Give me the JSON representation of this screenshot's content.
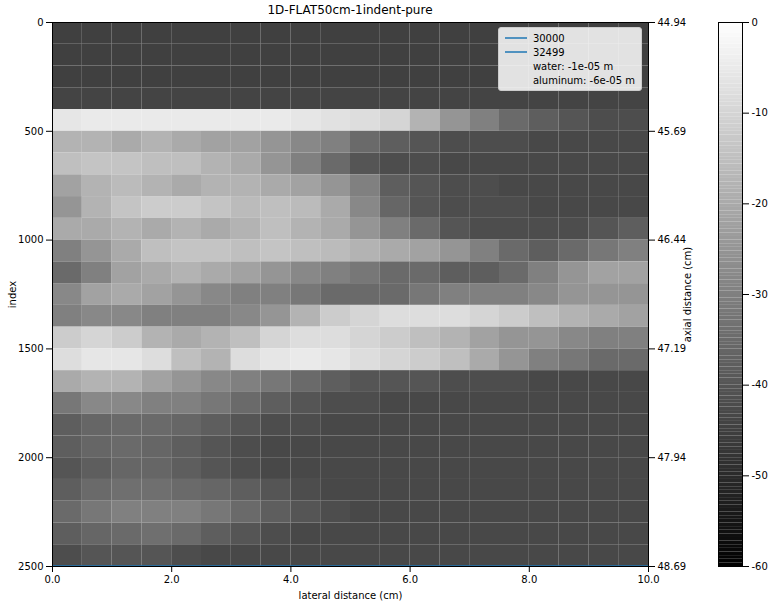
{
  "chart_data": {
    "type": "heatmap",
    "title": "1D-FLAT50cm-1indent-pure",
    "xlabel": "lateral distance (cm)",
    "ylabel": "index",
    "y2label": "axial distance (cm)",
    "xlim": [
      0,
      10
    ],
    "xticks": [
      {
        "value": 0,
        "label": "0.0"
      },
      {
        "value": 2,
        "label": "2.0"
      },
      {
        "value": 4,
        "label": "4.0"
      },
      {
        "value": 6,
        "label": "6.0"
      },
      {
        "value": 8,
        "label": "8.0"
      },
      {
        "value": 10,
        "label": "10.0"
      }
    ],
    "ylim": [
      2500,
      0
    ],
    "yticks": [
      0,
      500,
      1000,
      1500,
      2000,
      2500
    ],
    "y2lim": [
      48.69,
      44.94
    ],
    "y2ticks": [
      44.94,
      45.69,
      46.44,
      47.19,
      47.94,
      48.69
    ],
    "x_edges": [
      0,
      0.5,
      1,
      1.5,
      2,
      2.5,
      3,
      3.5,
      4,
      4.5,
      5,
      5.5,
      6,
      6.5,
      7,
      7.5,
      8,
      8.5,
      9,
      9.5,
      10
    ],
    "y_edges": [
      0,
      100,
      200,
      300,
      400,
      500,
      600,
      700,
      800,
      900,
      1000,
      1100,
      1200,
      1300,
      1400,
      1500,
      1600,
      1700,
      1800,
      1900,
      2000,
      2100,
      2200,
      2300,
      2400,
      2500
    ],
    "values": [
      [
        -45,
        -45,
        -45,
        -45,
        -45,
        -45,
        -45,
        -45,
        -45,
        -45,
        -45,
        -45,
        -45,
        -45,
        -45,
        -45,
        -45,
        -45,
        -45,
        -45
      ],
      [
        -45,
        -45,
        -45,
        -45,
        -45,
        -45,
        -45,
        -45,
        -45,
        -45,
        -45,
        -45,
        -45,
        -45,
        -45,
        -45,
        -45,
        -45,
        -45,
        -45
      ],
      [
        -45,
        -45,
        -45,
        -45,
        -45,
        -45,
        -45,
        -45,
        -45,
        -45,
        -45,
        -45,
        -45,
        -45,
        -45,
        -45,
        -45,
        -45,
        -45,
        -45
      ],
      [
        -44,
        -44,
        -44,
        -44,
        -44,
        -44,
        -44,
        -44,
        -44,
        -44,
        -44,
        -44,
        -44,
        -44,
        -44,
        -44,
        -44,
        -44,
        -44,
        -44
      ],
      [
        -6,
        -5,
        -5,
        -5,
        -5,
        -5,
        -5,
        -5,
        -6,
        -7,
        -8,
        -10,
        -18,
        -25,
        -30,
        -35,
        -38,
        -40,
        -42,
        -42
      ],
      [
        -18,
        -18,
        -20,
        -18,
        -20,
        -22,
        -22,
        -25,
        -28,
        -30,
        -35,
        -38,
        -40,
        -42,
        -42,
        -42,
        -43,
        -43,
        -43,
        -43
      ],
      [
        -15,
        -14,
        -14,
        -15,
        -15,
        -18,
        -20,
        -25,
        -30,
        -35,
        -40,
        -42,
        -42,
        -43,
        -43,
        -43,
        -43,
        -43,
        -43,
        -43
      ],
      [
        -22,
        -18,
        -16,
        -18,
        -20,
        -18,
        -18,
        -20,
        -22,
        -25,
        -30,
        -38,
        -40,
        -42,
        -42,
        -43,
        -43,
        -43,
        -43,
        -43
      ],
      [
        -25,
        -18,
        -14,
        -12,
        -12,
        -14,
        -16,
        -15,
        -16,
        -20,
        -28,
        -36,
        -40,
        -42,
        -42,
        -42,
        -43,
        -43,
        -43,
        -43
      ],
      [
        -20,
        -20,
        -18,
        -20,
        -18,
        -20,
        -18,
        -15,
        -18,
        -20,
        -25,
        -30,
        -35,
        -40,
        -42,
        -42,
        -42,
        -42,
        -40,
        -38
      ],
      [
        -30,
        -25,
        -20,
        -15,
        -14,
        -14,
        -15,
        -14,
        -15,
        -16,
        -18,
        -20,
        -22,
        -25,
        -30,
        -35,
        -38,
        -35,
        -32,
        -30
      ],
      [
        -35,
        -30,
        -22,
        -20,
        -18,
        -20,
        -22,
        -25,
        -28,
        -30,
        -32,
        -35,
        -35,
        -38,
        -38,
        -35,
        -30,
        -25,
        -22,
        -22
      ],
      [
        -28,
        -22,
        -20,
        -22,
        -25,
        -28,
        -30,
        -30,
        -32,
        -35,
        -35,
        -35,
        -32,
        -30,
        -30,
        -30,
        -28,
        -25,
        -25,
        -25
      ],
      [
        -30,
        -28,
        -28,
        -30,
        -30,
        -30,
        -28,
        -25,
        -18,
        -12,
        -10,
        -8,
        -8,
        -8,
        -10,
        -12,
        -15,
        -18,
        -20,
        -22
      ],
      [
        -12,
        -10,
        -12,
        -18,
        -20,
        -18,
        -15,
        -10,
        -8,
        -8,
        -10,
        -12,
        -15,
        -18,
        -22,
        -25,
        -25,
        -28,
        -30,
        -30
      ],
      [
        -8,
        -6,
        -6,
        -8,
        -15,
        -18,
        -8,
        -6,
        -5,
        -6,
        -8,
        -10,
        -12,
        -15,
        -20,
        -25,
        -30,
        -32,
        -35,
        -35
      ],
      [
        -20,
        -18,
        -18,
        -22,
        -25,
        -28,
        -30,
        -32,
        -35,
        -38,
        -40,
        -40,
        -40,
        -42,
        -42,
        -42,
        -43,
        -43,
        -43,
        -43
      ],
      [
        -32,
        -28,
        -28,
        -30,
        -30,
        -32,
        -35,
        -38,
        -40,
        -42,
        -42,
        -43,
        -43,
        -43,
        -43,
        -43,
        -43,
        -43,
        -43,
        -43
      ],
      [
        -38,
        -36,
        -35,
        -35,
        -36,
        -38,
        -40,
        -42,
        -42,
        -43,
        -43,
        -43,
        -43,
        -43,
        -43,
        -43,
        -43,
        -43,
        -43,
        -43
      ],
      [
        -38,
        -36,
        -35,
        -36,
        -38,
        -40,
        -42,
        -43,
        -43,
        -43,
        -43,
        -43,
        -43,
        -43,
        -43,
        -43,
        -43,
        -43,
        -43,
        -43
      ],
      [
        -40,
        -38,
        -36,
        -36,
        -38,
        -40,
        -42,
        -43,
        -43,
        -43,
        -43,
        -43,
        -43,
        -43,
        -43,
        -43,
        -43,
        -43,
        -43,
        -43
      ],
      [
        -38,
        -35,
        -34,
        -34,
        -35,
        -36,
        -38,
        -40,
        -42,
        -43,
        -43,
        -43,
        -43,
        -43,
        -43,
        -43,
        -43,
        -43,
        -43,
        -43
      ],
      [
        -35,
        -32,
        -30,
        -30,
        -30,
        -32,
        -35,
        -38,
        -40,
        -42,
        -43,
        -43,
        -43,
        -43,
        -43,
        -43,
        -43,
        -43,
        -43,
        -43
      ],
      [
        -38,
        -36,
        -35,
        -34,
        -35,
        -38,
        -40,
        -42,
        -43,
        -43,
        -43,
        -43,
        -43,
        -43,
        -43,
        -43,
        -43,
        -43,
        -43,
        -43
      ],
      [
        -42,
        -40,
        -40,
        -40,
        -42,
        -43,
        -43,
        -43,
        -43,
        -43,
        -43,
        -43,
        -43,
        -43,
        -43,
        -43,
        -43,
        -43,
        -43,
        -43
      ]
    ],
    "colorbar": {
      "lim": [
        -60,
        0
      ],
      "ticks": [
        0,
        -10,
        -20,
        -30,
        -40,
        -50,
        -60
      ]
    },
    "series": [
      {
        "name": "30000",
        "color": "#1f77b4",
        "type": "hline",
        "y": 2499
      },
      {
        "name": "32499",
        "color": "#1f77b4",
        "type": "hline",
        "y": 2499
      }
    ],
    "annotations": [
      "water: -1e-05 m",
      "aluminum: -6e-05 m"
    ],
    "legend": "upper right"
  }
}
